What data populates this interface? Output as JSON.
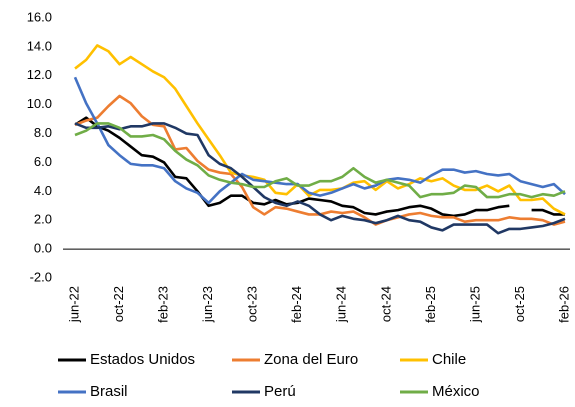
{
  "chart_data": {
    "type": "line",
    "categories": [
      "jun-22",
      null,
      null,
      null,
      "oct-22",
      null,
      null,
      null,
      "feb-23",
      null,
      null,
      null,
      "jun-23",
      null,
      null,
      null,
      "oct-23",
      null,
      null,
      null,
      "feb-24",
      null,
      null,
      null,
      "jun-24",
      null,
      null,
      null,
      "oct-24",
      null,
      null,
      null,
      "feb-25",
      null,
      null,
      null,
      "jun-25",
      null,
      null,
      null,
      "oct-25",
      null,
      null,
      null,
      "feb-26"
    ],
    "series": [
      {
        "name": "Estados Unidos",
        "color": "#000000",
        "values": [
          8.6,
          9.1,
          8.5,
          8.2,
          7.7,
          7.1,
          6.5,
          6.4,
          6.0,
          5.0,
          4.9,
          4.0,
          3.0,
          3.2,
          3.7,
          3.7,
          3.2,
          3.1,
          3.4,
          3.1,
          3.2,
          3.5,
          3.4,
          3.3,
          3.0,
          2.9,
          2.5,
          2.4,
          2.6,
          2.7,
          2.9,
          3.0,
          2.8,
          2.4,
          2.3,
          2.4,
          2.7,
          2.7,
          2.9,
          3.0,
          null,
          2.7,
          2.7,
          2.4,
          2.4
        ]
      },
      {
        "name": "Zona del Euro",
        "color": "#ed7d31",
        "values": [
          8.6,
          8.9,
          9.1,
          9.9,
          10.6,
          10.1,
          9.2,
          8.6,
          8.5,
          6.9,
          7.0,
          6.1,
          5.5,
          5.3,
          5.2,
          4.3,
          2.9,
          2.4,
          2.9,
          2.8,
          2.6,
          2.4,
          2.4,
          2.6,
          2.5,
          2.6,
          2.2,
          1.7,
          2.0,
          2.2,
          2.4,
          2.5,
          2.3,
          2.2,
          2.2,
          1.9,
          2.0,
          2.0,
          2.0,
          2.2,
          2.1,
          2.1,
          2.0,
          1.7,
          1.9
        ]
      },
      {
        "name": "Chile",
        "color": "#ffc000",
        "values": [
          12.5,
          13.1,
          14.1,
          13.7,
          12.8,
          13.3,
          12.8,
          12.3,
          11.9,
          11.1,
          9.9,
          8.7,
          7.6,
          6.5,
          5.3,
          5.1,
          5.0,
          4.8,
          3.9,
          3.8,
          4.5,
          3.7,
          4.1,
          4.1,
          4.2,
          4.6,
          4.7,
          4.1,
          4.7,
          4.2,
          4.5,
          4.9,
          4.7,
          4.9,
          4.4,
          4.1,
          4.1,
          4.4,
          4.0,
          4.4,
          3.4,
          3.4,
          3.5,
          2.8,
          2.4
        ]
      },
      {
        "name": "Brasil",
        "color": "#4472c4",
        "values": [
          11.9,
          10.1,
          8.7,
          7.2,
          6.5,
          5.9,
          5.8,
          5.8,
          5.6,
          4.7,
          4.2,
          3.9,
          3.2,
          4.0,
          4.6,
          5.2,
          4.8,
          4.7,
          4.6,
          4.5,
          4.5,
          3.9,
          3.7,
          3.9,
          4.2,
          4.5,
          4.2,
          4.4,
          4.8,
          4.9,
          4.8,
          4.6,
          5.1,
          5.5,
          5.5,
          5.3,
          5.4,
          5.2,
          5.1,
          5.2,
          4.7,
          4.5,
          4.3,
          4.5,
          3.8
        ]
      },
      {
        "name": "Perú",
        "color": "#203864",
        "values": [
          8.7,
          8.4,
          8.4,
          8.5,
          8.3,
          8.5,
          8.5,
          8.7,
          8.7,
          8.4,
          8.0,
          7.9,
          6.5,
          5.9,
          5.6,
          5.0,
          4.3,
          3.6,
          3.2,
          3.0,
          3.3,
          3.0,
          2.4,
          2.0,
          2.3,
          2.1,
          2.0,
          1.8,
          2.0,
          2.3,
          2.0,
          1.9,
          1.5,
          1.3,
          1.7,
          1.7,
          1.7,
          1.7,
          1.1,
          1.4,
          1.4,
          1.5,
          1.6,
          1.8,
          2.1
        ]
      },
      {
        "name": "México",
        "color": "#70ad47",
        "values": [
          7.9,
          8.2,
          8.7,
          8.7,
          8.4,
          7.8,
          7.8,
          7.9,
          7.6,
          6.8,
          6.2,
          5.8,
          5.1,
          4.8,
          4.6,
          4.5,
          4.3,
          4.3,
          4.7,
          4.9,
          4.4,
          4.4,
          4.7,
          4.7,
          5.0,
          5.6,
          5.0,
          4.6,
          4.8,
          4.6,
          4.4,
          3.6,
          3.8,
          3.8,
          3.9,
          4.4,
          4.3,
          3.6,
          3.6,
          3.8,
          3.8,
          3.6,
          3.8,
          3.7,
          4.0
        ]
      }
    ],
    "ylim": [
      -2,
      16
    ],
    "yticks": [
      {
        "value": -2,
        "label": "-2.0"
      },
      {
        "value": 0,
        "label": "0.0"
      },
      {
        "value": 2,
        "label": "2.0"
      },
      {
        "value": 4,
        "label": "4.0"
      },
      {
        "value": 6,
        "label": "6.0"
      },
      {
        "value": 8,
        "label": "8.0"
      },
      {
        "value": 10,
        "label": "10.0"
      },
      {
        "value": 12,
        "label": "12.0"
      },
      {
        "value": 14,
        "label": "14.0"
      },
      {
        "value": 16,
        "label": "16.0"
      }
    ],
    "grid": false,
    "legend": "bottom"
  }
}
